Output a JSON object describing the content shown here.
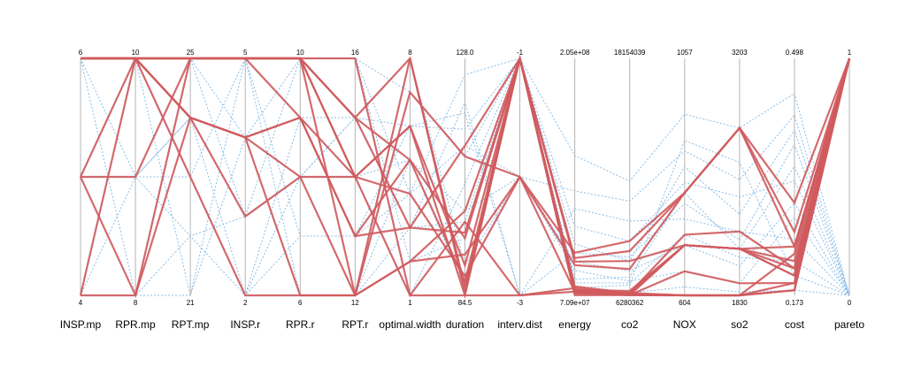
{
  "colors": {
    "pareto": "#cf5a5d",
    "other": "#89bde8",
    "axis": "#b4b4b4"
  },
  "chart_data": {
    "type": "parallel-coordinates",
    "axes": [
      {
        "id": "INSP.mp",
        "label": "INSP.mp",
        "max_label": "6",
        "min_label": "4",
        "min": 4,
        "max": 6
      },
      {
        "id": "RPR.mp",
        "label": "RPR.mp",
        "max_label": "10",
        "min_label": "8",
        "min": 8,
        "max": 10
      },
      {
        "id": "RPT.mp",
        "label": "RPT.mp",
        "max_label": "25",
        "min_label": "21",
        "min": 21,
        "max": 25
      },
      {
        "id": "INSP.r",
        "label": "INSP.r",
        "max_label": "5",
        "min_label": "2",
        "min": 2,
        "max": 5
      },
      {
        "id": "RPR.r",
        "label": "RPR.r",
        "max_label": "10",
        "min_label": "6",
        "min": 6,
        "max": 10
      },
      {
        "id": "RPT.r",
        "label": "RPT.r",
        "max_label": "16",
        "min_label": "12",
        "min": 12,
        "max": 16
      },
      {
        "id": "optimal.width",
        "label": "optimal.width",
        "max_label": "8",
        "min_label": "1",
        "min": 1,
        "max": 8
      },
      {
        "id": "duration",
        "label": "duration",
        "max_label": "128.0",
        "min_label": "84.5",
        "min": 84.5,
        "max": 128
      },
      {
        "id": "interv.dist",
        "label": "interv.dist",
        "max_label": "-1",
        "min_label": "-3",
        "min": -3,
        "max": -1
      },
      {
        "id": "energy",
        "label": "energy",
        "max_label": "2.05e+08",
        "min_label": "7.09e+07",
        "min": 70900000,
        "max": 205000000
      },
      {
        "id": "co2",
        "label": "co2",
        "max_label": "18154039",
        "min_label": "6280362",
        "min": 6280362,
        "max": 18154039
      },
      {
        "id": "NOX",
        "label": "NOX",
        "max_label": "1057",
        "min_label": "604",
        "min": 604,
        "max": 1057
      },
      {
        "id": "so2",
        "label": "so2",
        "max_label": "3203",
        "min_label": "1830",
        "min": 1830,
        "max": 3203
      },
      {
        "id": "cost",
        "label": "cost",
        "max_label": "0.498",
        "min_label": "0.173",
        "min": 0.173,
        "max": 0.498
      },
      {
        "id": "pareto",
        "label": "pareto",
        "max_label": "1",
        "min_label": "0",
        "min": 0,
        "max": 1
      }
    ],
    "lines": [
      {
        "pareto": 0,
        "values": [
          6,
          10,
          25,
          5,
          10,
          16,
          7,
          110.0,
          -1,
          80000000,
          7200000,
          800,
          2100,
          0.35,
          0
        ]
      },
      {
        "pareto": 0,
        "values": [
          5,
          9,
          24,
          4,
          9,
          15,
          6,
          115.0,
          -1,
          100000000,
          8000000,
          850,
          2300,
          0.4,
          0
        ]
      },
      {
        "pareto": 0,
        "values": [
          4,
          8,
          22,
          3,
          8,
          14,
          5,
          100.0,
          -2,
          90000000,
          7500000,
          700,
          2000,
          0.3,
          0
        ]
      },
      {
        "pareto": 0,
        "values": [
          6,
          9,
          23,
          2,
          7,
          13,
          4,
          125.0,
          -1,
          150000000,
          12000000,
          950,
          2800,
          0.45,
          0
        ]
      },
      {
        "pareto": 0,
        "values": [
          5,
          10,
          21,
          5,
          6,
          12,
          3,
          120.0,
          -3,
          120000000,
          10000000,
          750,
          2200,
          0.25,
          0
        ]
      },
      {
        "pareto": 0,
        "values": [
          4,
          8,
          25,
          4,
          10,
          16,
          2,
          95.0,
          -1,
          75000000,
          6800000,
          900,
          2600,
          0.2,
          0
        ]
      },
      {
        "pareto": 0,
        "values": [
          6,
          10,
          24,
          3,
          8,
          15,
          8,
          90.0,
          -2,
          85000000,
          7000000,
          650,
          1900,
          0.28,
          0
        ]
      },
      {
        "pareto": 0,
        "values": [
          5,
          9,
          22,
          2,
          9,
          14,
          1,
          105.0,
          -1,
          110000000,
          9000000,
          820,
          2400,
          0.33,
          0
        ]
      },
      {
        "pareto": 0,
        "values": [
          4,
          10,
          23,
          5,
          7,
          13,
          6,
          118.0,
          -3,
          95000000,
          8200000,
          780,
          2150,
          0.38,
          0
        ]
      },
      {
        "pareto": 0,
        "values": [
          6,
          8,
          21,
          4,
          6,
          12,
          5,
          86.0,
          -1,
          72000000,
          6400000,
          620,
          1850,
          0.18,
          0
        ]
      },
      {
        "pareto": 0,
        "values": [
          5,
          10,
          25,
          3,
          10,
          16,
          4,
          112.0,
          -2,
          130000000,
          11000000,
          880,
          2500,
          0.42,
          0
        ]
      },
      {
        "pareto": 0,
        "values": [
          4,
          9,
          24,
          2,
          8,
          15,
          3,
          98.0,
          -1,
          78000000,
          6900000,
          720,
          2050,
          0.22,
          0
        ]
      },
      {
        "pareto": 1,
        "values": [
          6,
          10,
          25,
          5,
          10,
          15,
          8,
          85.0,
          -1,
          74000000,
          6500000,
          700,
          2100,
          0.2,
          1
        ]
      },
      {
        "pareto": 1,
        "values": [
          6,
          10,
          25,
          5,
          10,
          14,
          6,
          90.0,
          -1,
          72000000,
          6300000,
          650,
          1900,
          0.19,
          1
        ]
      },
      {
        "pareto": 1,
        "values": [
          6,
          10,
          24,
          4,
          9,
          13,
          5,
          95.0,
          -1,
          76000000,
          6400000,
          720,
          2200,
          0.21,
          1
        ]
      },
      {
        "pareto": 1,
        "values": [
          6,
          10,
          24,
          3,
          8,
          12,
          2,
          100.0,
          -1,
          73000000,
          6290000,
          604,
          1830,
          0.18,
          1
        ]
      },
      {
        "pareto": 1,
        "values": [
          5,
          9,
          25,
          5,
          10,
          16,
          1,
          84.5,
          -3,
          75000000,
          6350000,
          700,
          2100,
          0.22,
          1
        ]
      },
      {
        "pareto": 1,
        "values": [
          5,
          8,
          24,
          4,
          6,
          12,
          7,
          110.0,
          -2,
          95000000,
          9000000,
          800,
          2800,
          0.3,
          1
        ]
      },
      {
        "pareto": 1,
        "values": [
          4,
          8,
          25,
          5,
          10,
          15,
          3,
          112.0,
          -1,
          92000000,
          8500000,
          800,
          2800,
          0.24,
          1
        ]
      },
      {
        "pareto": 1,
        "values": [
          6,
          10,
          24,
          4,
          8,
          14,
          4,
          88.0,
          -2,
          88000000,
          7600000,
          800,
          2800,
          0.26,
          1
        ]
      },
      {
        "pareto": 1,
        "values": [
          4,
          10,
          25,
          5,
          10,
          12,
          8,
          86.0,
          -1,
          71000000,
          6300000,
          604,
          1830,
          0.19,
          1
        ]
      },
      {
        "pareto": 1,
        "values": [
          6,
          10,
          23,
          2,
          6,
          12,
          2,
          92.0,
          -2,
          73000000,
          6400000,
          700,
          2100,
          0.2,
          1
        ]
      },
      {
        "pareto": 1,
        "values": [
          6,
          10,
          25,
          5,
          9,
          13,
          3,
          96.0,
          -1,
          74000000,
          6350000,
          604,
          1830,
          0.18,
          1
        ]
      },
      {
        "pareto": 1,
        "values": [
          6,
          10,
          25,
          5,
          10,
          15,
          5,
          87.0,
          -1,
          72500000,
          6290000,
          700,
          2100,
          0.21,
          1
        ]
      },
      {
        "pareto": 1,
        "values": [
          5,
          10,
          24,
          4,
          9,
          14,
          1,
          98.0,
          -3,
          73000000,
          6400000,
          604,
          1830,
          0.23,
          1
        ]
      },
      {
        "pareto": 1,
        "values": [
          6,
          10,
          25,
          5,
          10,
          14,
          6,
          84.5,
          -1,
          90000000,
          8000000,
          700,
          2100,
          0.24,
          1
        ]
      }
    ]
  }
}
